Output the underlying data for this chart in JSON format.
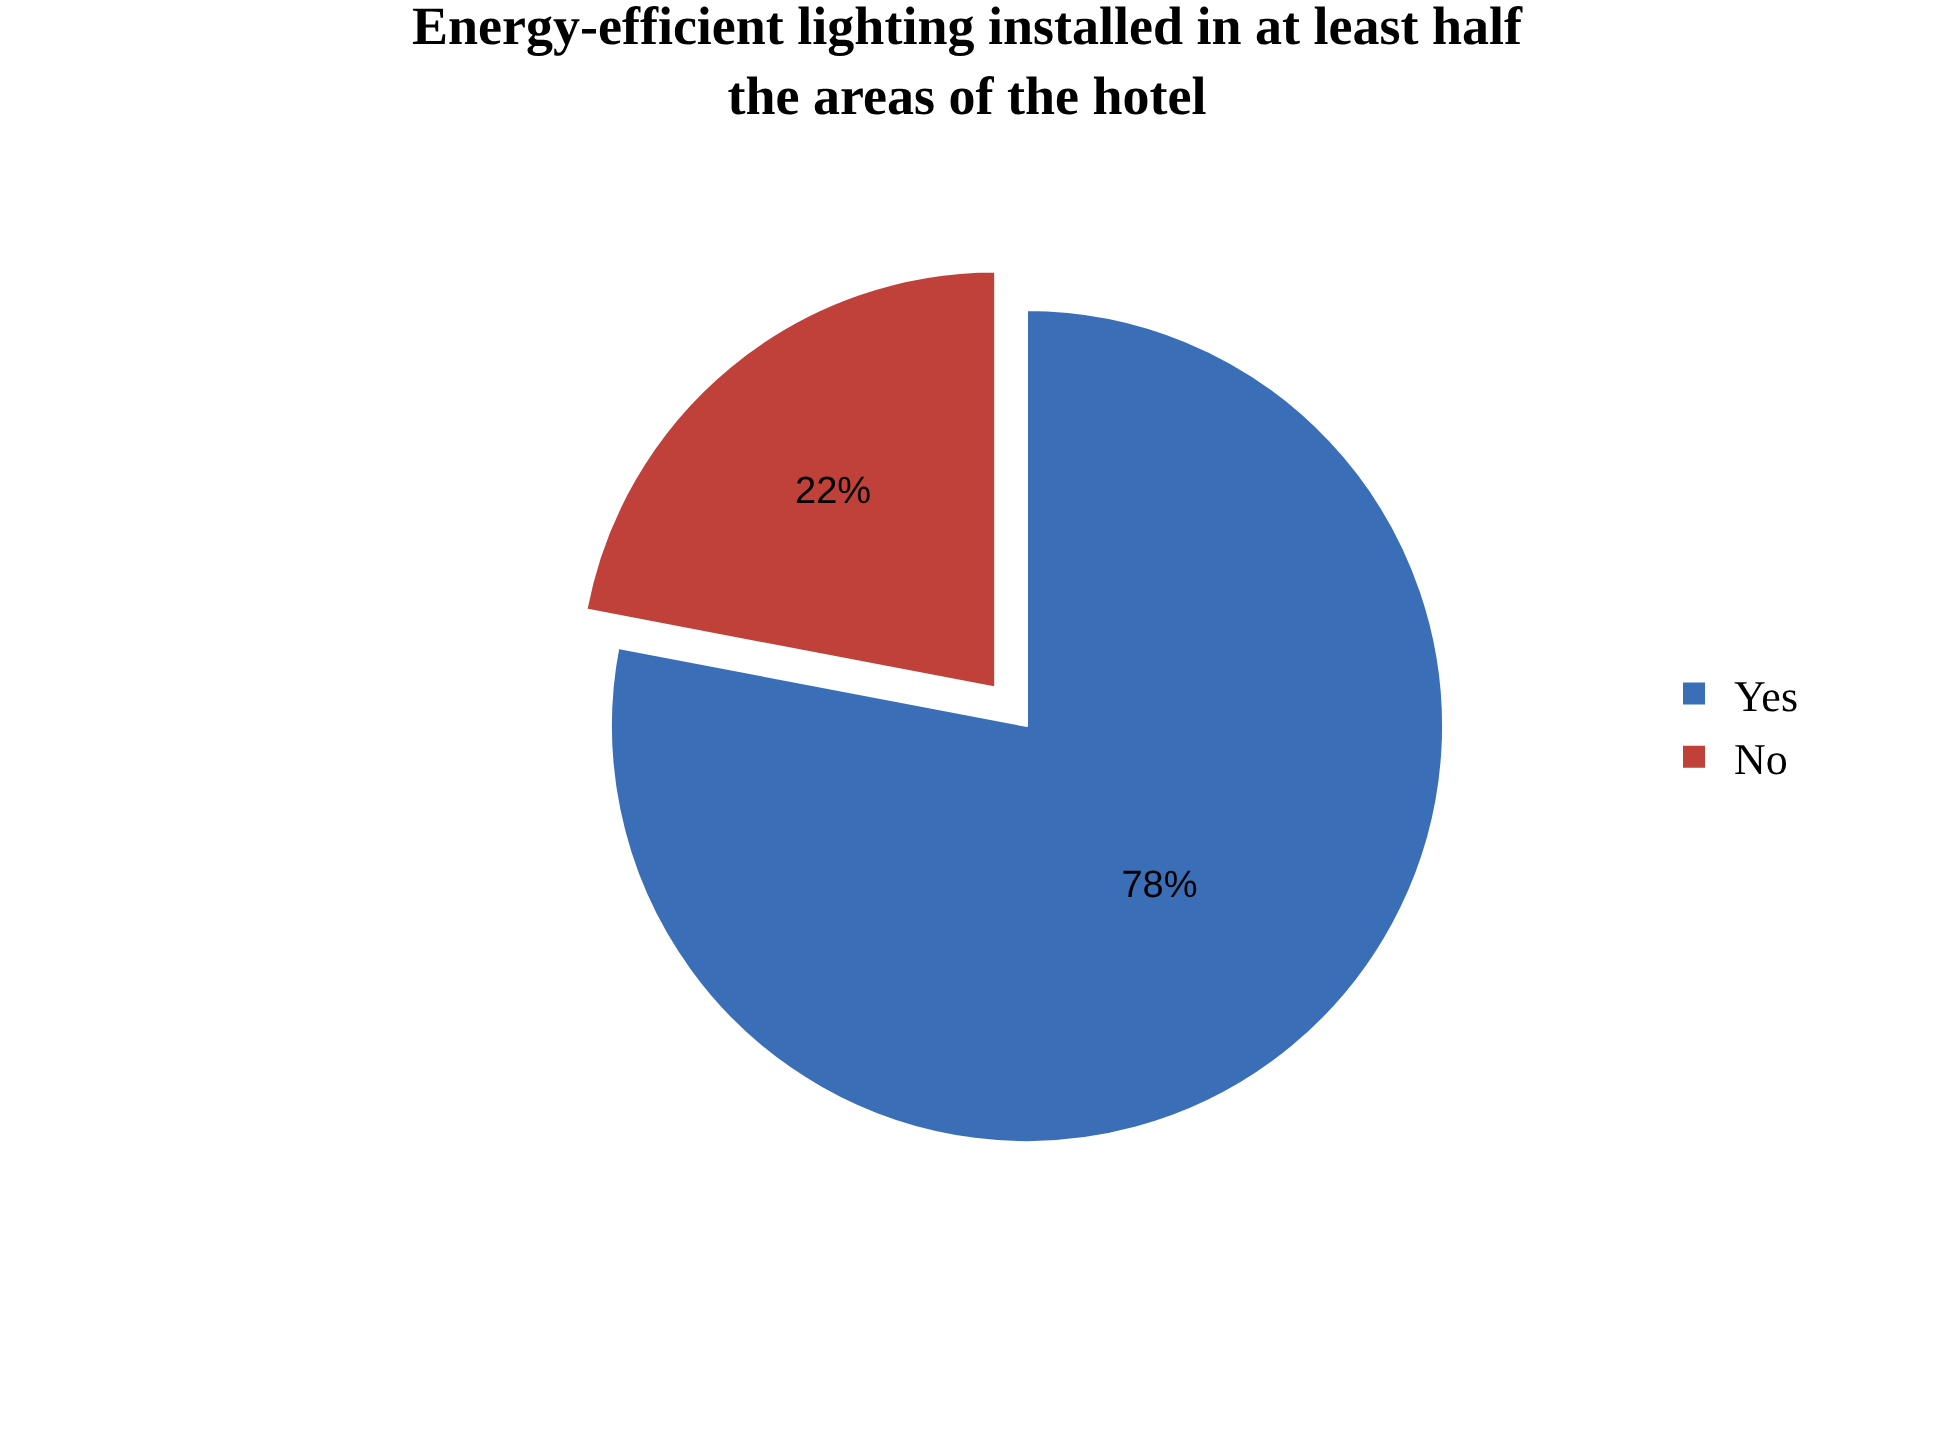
{
  "chart_data": {
    "type": "pie",
    "title": "Energy-efficient lighting installed in at least half the areas of the hotel",
    "categories": [
      "Yes",
      "No"
    ],
    "values": [
      78,
      22
    ],
    "colors": [
      "#3a6fb8",
      "#c0403a"
    ],
    "value_labels": [
      "78%",
      "22%"
    ],
    "legend": "right"
  }
}
